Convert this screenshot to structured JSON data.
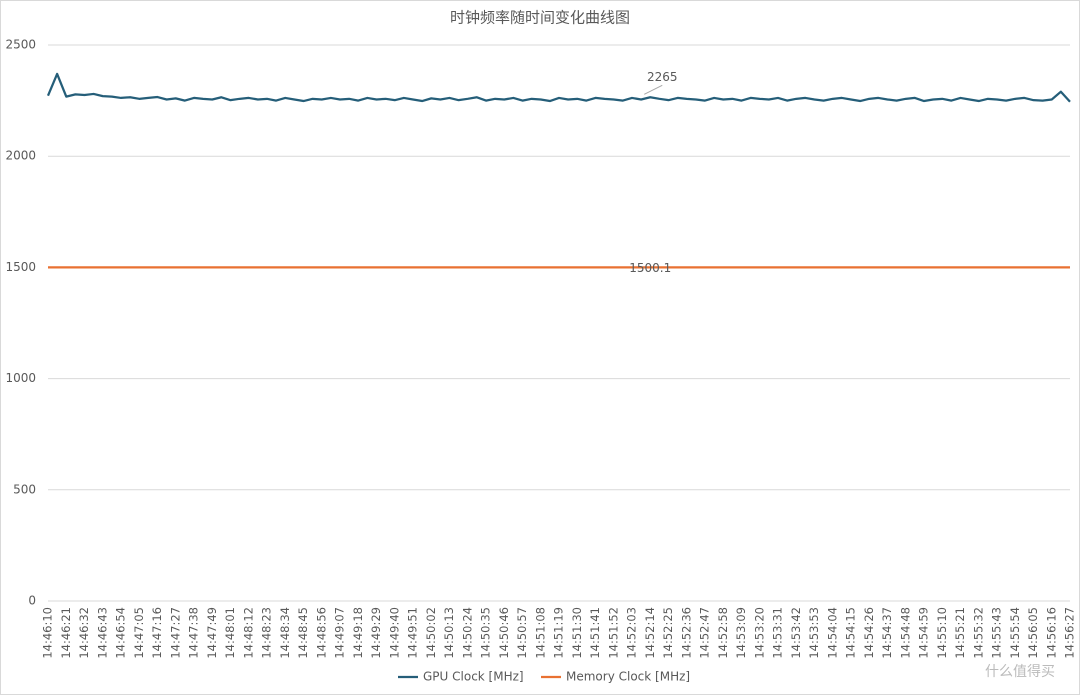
{
  "chart_data": {
    "type": "line",
    "title": "时钟频率随时间变化曲线图",
    "categories": [
      "14:46:10",
      null,
      "14:46:21",
      null,
      "14:46:32",
      null,
      "14:46:43",
      null,
      "14:46:54",
      null,
      "14:47:05",
      null,
      "14:47:16",
      null,
      "14:47:27",
      null,
      "14:47:38",
      null,
      "14:47:49",
      null,
      "14:48:01",
      null,
      "14:48:12",
      null,
      "14:48:23",
      null,
      "14:48:34",
      null,
      "14:48:45",
      null,
      "14:48:56",
      null,
      "14:49:07",
      null,
      "14:49:18",
      null,
      "14:49:29",
      null,
      "14:49:40",
      null,
      "14:49:51",
      null,
      "14:50:02",
      null,
      "14:50:13",
      null,
      "14:50:24",
      null,
      "14:50:35",
      null,
      "14:50:46",
      null,
      "14:50:57",
      null,
      "14:51:08",
      null,
      "14:51:19",
      null,
      "14:51:30",
      null,
      "14:51:41",
      null,
      "14:51:52",
      null,
      "14:52:03",
      null,
      "14:52:14",
      null,
      "14:52:25",
      null,
      "14:52:36",
      null,
      "14:52:47",
      null,
      "14:52:58",
      null,
      "14:53:09",
      null,
      "14:53:20",
      null,
      "14:53:31",
      null,
      "14:53:42",
      null,
      "14:53:53",
      null,
      "14:54:04",
      null,
      "14:54:15",
      null,
      "14:54:26",
      null,
      "14:54:37",
      null,
      "14:54:48",
      null,
      "14:54:59",
      null,
      "14:55:10",
      null,
      "14:55:21",
      null,
      "14:55:32",
      null,
      "14:55:43",
      null,
      "14:55:54",
      null,
      "14:56:05",
      null,
      "14:56:16",
      null,
      "14:56:27"
    ],
    "series": [
      {
        "name": "GPU Clock [MHz]",
        "color": "#255e79",
        "values": [
          2272,
          2370,
          2268,
          2278,
          2275,
          2280,
          2270,
          2268,
          2262,
          2265,
          2258,
          2262,
          2266,
          2255,
          2260,
          2250,
          2262,
          2258,
          2255,
          2265,
          2252,
          2258,
          2262,
          2255,
          2258,
          2250,
          2262,
          2255,
          2248,
          2258,
          2255,
          2262,
          2255,
          2258,
          2250,
          2262,
          2255,
          2258,
          2252,
          2262,
          2255,
          2248,
          2260,
          2255,
          2262,
          2252,
          2258,
          2265,
          2250,
          2258,
          2255,
          2262,
          2250,
          2258,
          2255,
          2248,
          2262,
          2255,
          2258,
          2250,
          2262,
          2258,
          2255,
          2250,
          2262,
          2255,
          2265,
          2258,
          2252,
          2262,
          2258,
          2255,
          2250,
          2262,
          2255,
          2258,
          2250,
          2262,
          2258,
          2255,
          2262,
          2250,
          2258,
          2262,
          2255,
          2250,
          2258,
          2262,
          2255,
          2248,
          2258,
          2262,
          2255,
          2250,
          2258,
          2262,
          2248,
          2255,
          2258,
          2250,
          2262,
          2255,
          2248,
          2258,
          2255,
          2250,
          2258,
          2262,
          2252,
          2250,
          2255,
          2290,
          2245
        ],
        "value_labels": [
          null,
          null,
          null,
          null,
          null,
          null,
          null,
          null,
          null,
          null,
          null,
          null,
          null,
          null,
          null,
          null,
          null,
          null,
          null,
          null,
          null,
          null,
          null,
          null,
          null,
          null,
          null,
          null,
          null,
          null,
          null,
          null,
          null,
          null,
          null,
          null,
          null,
          null,
          null,
          null,
          null,
          null,
          null,
          null,
          null,
          null,
          null,
          null,
          null,
          null,
          null,
          null,
          null,
          null,
          null,
          null,
          null,
          null,
          null,
          null,
          null,
          null,
          null,
          null,
          null,
          null,
          "2265",
          null,
          null,
          null,
          null,
          null,
          null,
          null,
          null,
          null,
          null,
          null,
          null,
          null,
          null,
          null,
          null,
          null,
          null,
          null,
          null,
          null,
          null,
          null,
          null,
          null,
          null,
          null,
          null,
          null,
          null,
          null,
          null,
          null,
          null,
          null,
          null,
          null,
          null,
          null,
          null,
          null,
          null,
          null,
          null,
          null,
          null
        ]
      },
      {
        "name": "Memory Clock [MHz]",
        "color": "#e97132",
        "values": [
          1500.1,
          1500.1,
          1500.1,
          1500.1,
          1500.1,
          1500.1,
          1500.1,
          1500.1,
          1500.1,
          1500.1,
          1500.1,
          1500.1,
          1500.1,
          1500.1,
          1500.1,
          1500.1,
          1500.1,
          1500.1,
          1500.1,
          1500.1,
          1500.1,
          1500.1,
          1500.1,
          1500.1,
          1500.1,
          1500.1,
          1500.1,
          1500.1,
          1500.1,
          1500.1,
          1500.1,
          1500.1,
          1500.1,
          1500.1,
          1500.1,
          1500.1,
          1500.1,
          1500.1,
          1500.1,
          1500.1,
          1500.1,
          1500.1,
          1500.1,
          1500.1,
          1500.1,
          1500.1,
          1500.1,
          1500.1,
          1500.1,
          1500.1,
          1500.1,
          1500.1,
          1500.1,
          1500.1,
          1500.1,
          1500.1,
          1500.1,
          1500.1,
          1500.1,
          1500.1,
          1500.1,
          1500.1,
          1500.1,
          1500.1,
          1500.1,
          1500.1,
          1500.1,
          1500.1,
          1500.1,
          1500.1,
          1500.1,
          1500.1,
          1500.1,
          1500.1,
          1500.1,
          1500.1,
          1500.1,
          1500.1,
          1500.1,
          1500.1,
          1500.1,
          1500.1,
          1500.1,
          1500.1,
          1500.1,
          1500.1,
          1500.1,
          1500.1,
          1500.1,
          1500.1,
          1500.1,
          1500.1,
          1500.1,
          1500.1,
          1500.1,
          1500.1,
          1500.1,
          1500.1,
          1500.1,
          1500.1,
          1500.1,
          1500.1,
          1500.1,
          1500.1,
          1500.1,
          1500.1,
          1500.1,
          1500.1,
          1500.1,
          1500.1,
          1500.1,
          1500.1,
          1500.1
        ],
        "value_labels": [
          null,
          null,
          null,
          null,
          null,
          null,
          null,
          null,
          null,
          null,
          null,
          null,
          null,
          null,
          null,
          null,
          null,
          null,
          null,
          null,
          null,
          null,
          null,
          null,
          null,
          null,
          null,
          null,
          null,
          null,
          null,
          null,
          null,
          null,
          null,
          null,
          null,
          null,
          null,
          null,
          null,
          null,
          null,
          null,
          null,
          null,
          null,
          null,
          null,
          null,
          null,
          null,
          null,
          null,
          null,
          null,
          null,
          null,
          null,
          null,
          null,
          null,
          null,
          null,
          null,
          null,
          "1500.1",
          null,
          null,
          null,
          null,
          null,
          null,
          null,
          null,
          null,
          null,
          null,
          null,
          null,
          null,
          null,
          null,
          null,
          null,
          null,
          null,
          null,
          null,
          null,
          null,
          null,
          null,
          null,
          null,
          null,
          null,
          null,
          null,
          null,
          null,
          null,
          null,
          null,
          null,
          null,
          null,
          null,
          null,
          null,
          null,
          null,
          null
        ]
      }
    ],
    "ylim": [
      0,
      2500
    ],
    "yticks": [
      0,
      500,
      1000,
      1500,
      2000,
      2500
    ],
    "grid": true,
    "legend": "bottom",
    "watermark": "什么值得买"
  }
}
